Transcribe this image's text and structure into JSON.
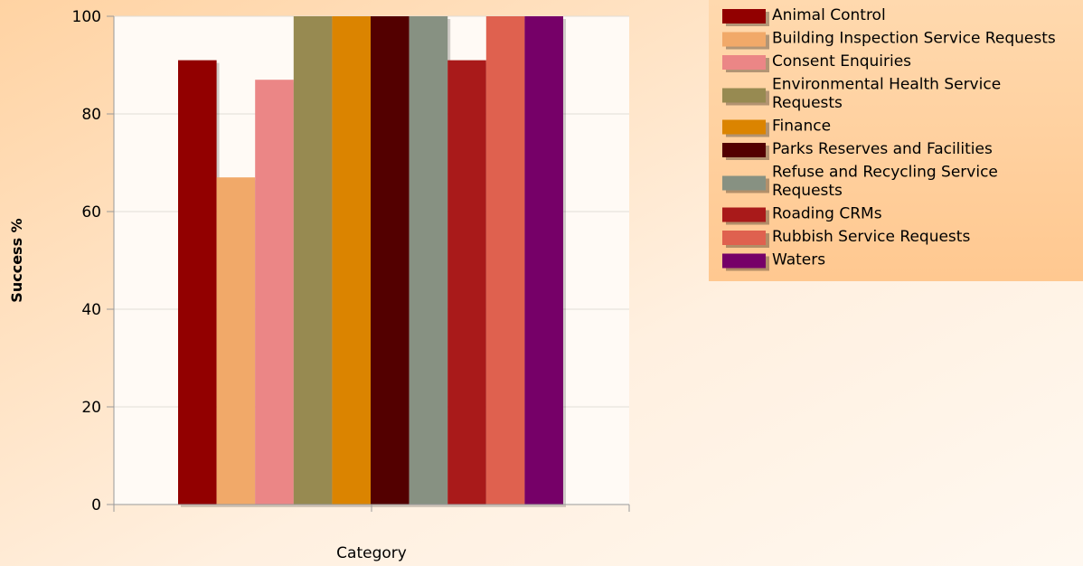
{
  "chart_data": {
    "type": "bar",
    "title": "",
    "xlabel": "Category",
    "ylabel": "Success %",
    "ylim": [
      0,
      100
    ],
    "yticks": [
      "0",
      "20",
      "40",
      "60",
      "80",
      "100"
    ],
    "grid": true,
    "legend_position": "top-right",
    "series": [
      {
        "name": "Animal Control",
        "value": 91,
        "color": "#920000"
      },
      {
        "name": "Building Inspection Service Requests",
        "value": 67,
        "color": "#f1a969"
      },
      {
        "name": "Consent Enquiries",
        "value": 87,
        "color": "#eb8686"
      },
      {
        "name": "Environmental Health Service Requests",
        "value": 100,
        "color": "#978a51"
      },
      {
        "name": "Finance",
        "value": 100,
        "color": "#db8400"
      },
      {
        "name": "Parks Reserves and Facilities",
        "value": 100,
        "color": "#530000"
      },
      {
        "name": "Refuse and Recycling Service Requests",
        "value": 100,
        "color": "#879182"
      },
      {
        "name": "Roading CRMs",
        "value": 91,
        "color": "#a91a1a"
      },
      {
        "name": "Rubbish Service Requests",
        "value": 100,
        "color": "#df614f"
      },
      {
        "name": "Waters",
        "value": 100,
        "color": "#760068"
      }
    ]
  }
}
